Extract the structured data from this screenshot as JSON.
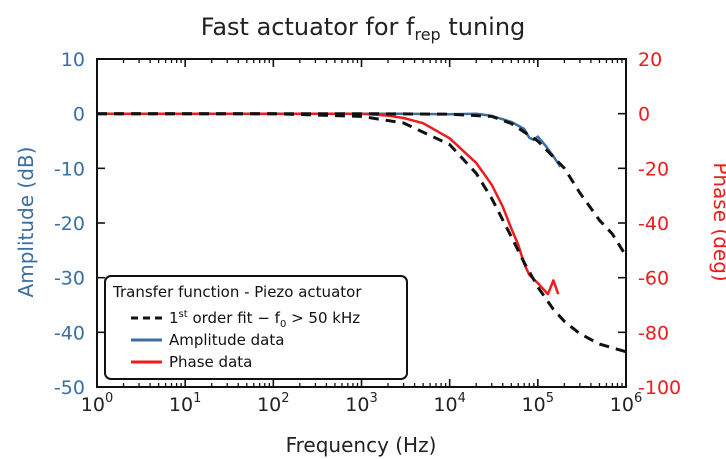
{
  "chart_data": {
    "type": "line",
    "title": {
      "prefix": "Fast actuator for f",
      "subscript": "rep",
      "suffix": " tuning"
    },
    "xlabel": "Frequency (Hz)",
    "ylabel_left": "Amplitude (dB)",
    "ylabel_right": "Phase (deg)",
    "x_scale": "log",
    "xlim": [
      1,
      1000000
    ],
    "ylim_left": [
      -50,
      10
    ],
    "ylim_right": [
      -100,
      20
    ],
    "x_ticks": [
      {
        "value": 1,
        "base": "10",
        "exp": "0"
      },
      {
        "value": 10,
        "base": "10",
        "exp": "1"
      },
      {
        "value": 100,
        "base": "10",
        "exp": "2"
      },
      {
        "value": 1000,
        "base": "10",
        "exp": "3"
      },
      {
        "value": 10000,
        "base": "10",
        "exp": "4"
      },
      {
        "value": 100000,
        "base": "10",
        "exp": "5"
      },
      {
        "value": 1000000,
        "base": "10",
        "exp": "6"
      }
    ],
    "y_ticks_left": [
      10,
      0,
      -10,
      -20,
      -30,
      -40,
      -50
    ],
    "y_ticks_right": [
      20,
      0,
      -20,
      -40,
      -60,
      -80,
      -100
    ],
    "grid": false,
    "legend": {
      "placement": "bottom-left",
      "title": "Transfer function - Piezo actuator",
      "entries": [
        {
          "key": "fit",
          "prefix": "1",
          "sup": "st",
          "middle": " order fit − f",
          "sub": "0",
          "suffix": " > 50 kHz"
        },
        {
          "key": "amp",
          "label": "Amplitude data"
        },
        {
          "key": "phase",
          "label": "Phase data"
        }
      ]
    },
    "colors": {
      "amplitude": "#3a6ea5",
      "phase": "#ee1c1c",
      "fit": "#111111",
      "axis": "#111111",
      "left_axis_text": "#3a6ea5",
      "right_axis_text": "#ee1c1c"
    },
    "series": [
      {
        "name": "Amplitude data",
        "key": "amp",
        "axis": "left",
        "points": [
          [
            1,
            0
          ],
          [
            10,
            0
          ],
          [
            100,
            0
          ],
          [
            1000,
            0
          ],
          [
            3000,
            0
          ],
          [
            10000,
            -0.1
          ],
          [
            20000,
            0
          ],
          [
            30000,
            -0.4
          ],
          [
            50000,
            -1.5
          ],
          [
            70000,
            -2.8
          ],
          [
            80000,
            -4.4
          ],
          [
            90000,
            -4.8
          ],
          [
            100000,
            -4.2
          ],
          [
            120000,
            -5.7
          ],
          [
            150000,
            -7.8
          ],
          [
            180000,
            -9.7
          ]
        ]
      },
      {
        "name": "Phase data",
        "key": "phase",
        "axis": "right",
        "points": [
          [
            1,
            0
          ],
          [
            10,
            0
          ],
          [
            100,
            0
          ],
          [
            1000,
            0
          ],
          [
            2000,
            -0.7
          ],
          [
            3000,
            -1.6
          ],
          [
            5000,
            -3.5
          ],
          [
            10000,
            -9
          ],
          [
            20000,
            -18
          ],
          [
            30000,
            -26
          ],
          [
            40000,
            -34
          ],
          [
            50000,
            -42
          ],
          [
            60000,
            -48
          ],
          [
            70000,
            -55
          ],
          [
            80000,
            -59
          ],
          [
            100000,
            -62
          ],
          [
            130000,
            -66
          ],
          [
            150000,
            -61
          ],
          [
            170000,
            -66
          ]
        ]
      },
      {
        "name": "1st order fit − f0 > 50 kHz",
        "key": "fit",
        "axis": "left",
        "phase_axis": "right",
        "amplitude_points": [
          [
            1,
            0
          ],
          [
            10,
            0
          ],
          [
            100,
            0
          ],
          [
            1000,
            0
          ],
          [
            10000,
            -0.1
          ],
          [
            30000,
            -0.5
          ],
          [
            50000,
            -1.8
          ],
          [
            100000,
            -5
          ],
          [
            200000,
            -10
          ],
          [
            300000,
            -14.5
          ],
          [
            500000,
            -19.5
          ],
          [
            700000,
            -22
          ],
          [
            1000000,
            -26
          ]
        ],
        "phase_points": [
          [
            1,
            0
          ],
          [
            10,
            0
          ],
          [
            100,
            0
          ],
          [
            1000,
            -1
          ],
          [
            3000,
            -3.4
          ],
          [
            10000,
            -11.3
          ],
          [
            20000,
            -21.8
          ],
          [
            30000,
            -31
          ],
          [
            50000,
            -45
          ],
          [
            70000,
            -54.5
          ],
          [
            100000,
            -63.4
          ],
          [
            150000,
            -71.6
          ],
          [
            200000,
            -76
          ],
          [
            300000,
            -80.5
          ],
          [
            500000,
            -84.3
          ],
          [
            1000000,
            -87.1
          ]
        ]
      }
    ]
  }
}
